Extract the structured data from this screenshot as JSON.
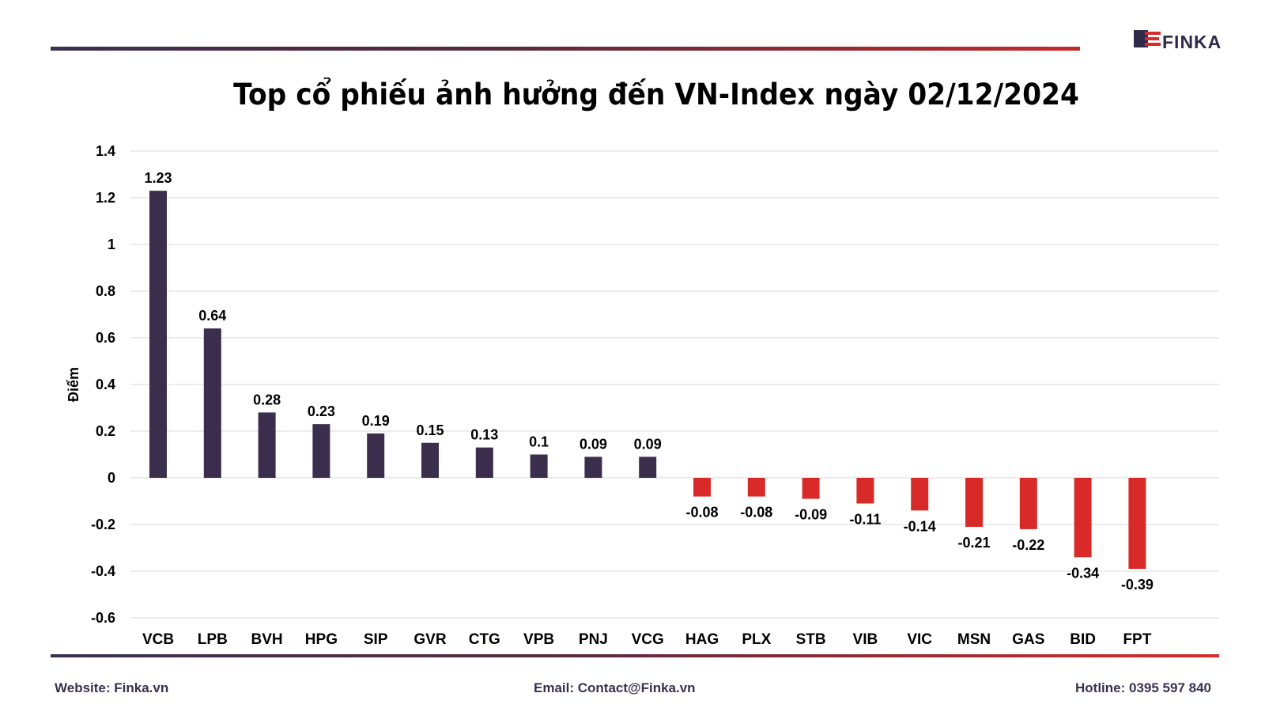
{
  "brand": {
    "name": "FINKA",
    "color_dark": "#2f2a4a",
    "color_accent": "#d92a2a"
  },
  "title": "Top cổ phiếu ảnh hưởng đến VN-Index ngày 02/12/2024",
  "footer": {
    "website": "Website: Finka.vn",
    "email": "Email: Contact@Finka.vn",
    "hotline": "Hotline: 0395 597 840"
  },
  "chart_data": {
    "type": "bar",
    "ylabel": "Điểm",
    "ylim": [
      -0.6,
      1.4
    ],
    "yticks": [
      "1.4",
      "1.2",
      "1",
      "0.8",
      "0.6",
      "0.4",
      "0.2",
      "0",
      "-0.2",
      "-0.4",
      "-0.6"
    ],
    "grid": true,
    "categories": [
      "VCB",
      "LPB",
      "BVH",
      "HPG",
      "SIP",
      "GVR",
      "CTG",
      "VPB",
      "PNJ",
      "VCG",
      "HAG",
      "PLX",
      "STB",
      "VIB",
      "VIC",
      "MSN",
      "GAS",
      "BID",
      "FPT"
    ],
    "values": [
      1.23,
      0.64,
      0.28,
      0.23,
      0.19,
      0.15,
      0.13,
      0.1,
      0.09,
      0.09,
      -0.08,
      -0.08,
      -0.09,
      -0.11,
      -0.14,
      -0.21,
      -0.22,
      -0.34,
      -0.39
    ],
    "data_labels": [
      "1.23",
      "0.64",
      "0.28",
      "0.23",
      "0.19",
      "0.15",
      "0.13",
      "0.1",
      "0.09",
      "0.09",
      "-0.08",
      "-0.08",
      "-0.09",
      "-0.11",
      "-0.14",
      "-0.21",
      "-0.22",
      "-0.34",
      "-0.39"
    ],
    "colors": {
      "positive": "#3b2e4d",
      "negative": "#d92a2a"
    }
  }
}
